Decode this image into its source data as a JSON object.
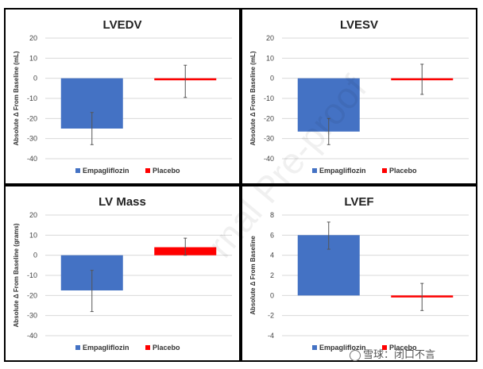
{
  "colors": {
    "empagliflozin": "#4472C4",
    "placebo": "#FF0000",
    "grid": "#D9D9D9",
    "error": "#555555"
  },
  "watermark": {
    "text": "雪球：闭口不言",
    "icon": "snowball-icon"
  },
  "faint_watermark": "rnal Pre-proof",
  "chart_data": [
    {
      "type": "bar",
      "title": "LVEDV",
      "ylabel": "Absolute Δ From Baseline (mL)",
      "ylim": [
        -40,
        20
      ],
      "ticks": [
        20,
        10,
        0,
        -10,
        -20,
        -30,
        -40
      ],
      "categories": [
        "Empagliflozin",
        "Placebo"
      ],
      "values": [
        -25,
        -1
      ],
      "errors": [
        [
          -33,
          -17
        ],
        [
          -9.5,
          6.5
        ]
      ],
      "legend": [
        "Empagliflozin",
        "Placebo"
      ]
    },
    {
      "type": "bar",
      "title": "LVESV",
      "ylabel": "Absolute Δ From Baseline (mL)",
      "ylim": [
        -40,
        20
      ],
      "ticks": [
        20,
        10,
        0,
        -10,
        -20,
        -30,
        -40
      ],
      "categories": [
        "Empagliflozin",
        "Placebo"
      ],
      "values": [
        -26.5,
        -0.3
      ],
      "errors": [
        [
          -33,
          -20
        ],
        [
          -8,
          7
        ]
      ],
      "legend": [
        "Empagliflozin",
        "Placebo"
      ]
    },
    {
      "type": "bar",
      "title": "LV Mass",
      "ylabel": "Absolute Δ From Baseline (grams)",
      "ylim": [
        -40,
        20
      ],
      "ticks": [
        20,
        10,
        0,
        -10,
        -20,
        -30,
        -40
      ],
      "categories": [
        "Empagliflozin",
        "Placebo"
      ],
      "values": [
        -17.5,
        4
      ],
      "errors": [
        [
          -28,
          -7.5
        ],
        [
          0,
          8.5
        ]
      ],
      "legend": [
        "Empagliflozin",
        "Placebo"
      ]
    },
    {
      "type": "bar",
      "title": "LVEF",
      "ylabel": "Absolute Δ From Baseline",
      "ylim": [
        -4,
        8
      ],
      "ticks": [
        8,
        6,
        4,
        2,
        0,
        -2,
        -4
      ],
      "categories": [
        "Empagliflozin",
        "Placebo"
      ],
      "values": [
        6,
        -0.1
      ],
      "errors": [
        [
          4.6,
          7.3
        ],
        [
          -1.5,
          1.2
        ]
      ],
      "legend": [
        "Empagliflozin",
        "Placebo"
      ]
    }
  ]
}
